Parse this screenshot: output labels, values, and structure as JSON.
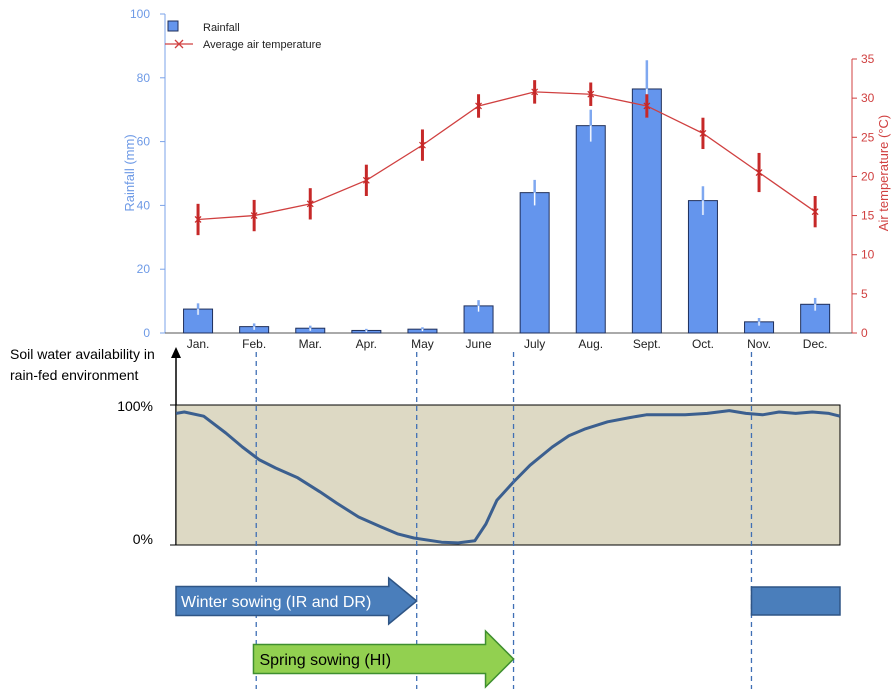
{
  "chart_data": [
    {
      "type": "bar",
      "categories": [
        "Jan.",
        "Feb.",
        "Mar.",
        "Apr.",
        "May",
        "June",
        "July",
        "Aug.",
        "Sept.",
        "Oct.",
        "Nov.",
        "Dec."
      ],
      "ylabel": "Rainfall (mm)",
      "y2label": "Air temperature (°C)",
      "ylim": [
        0,
        100
      ],
      "y_ticks": [
        0,
        20,
        40,
        60,
        80,
        100
      ],
      "y2lim": [
        0,
        35
      ],
      "y2_ticks": [
        0,
        5,
        10,
        15,
        20,
        25,
        30,
        35
      ],
      "legend_placement": "top-left",
      "grid": false,
      "series": [
        {
          "name": "Rainfall",
          "kind": "bar",
          "axis": "left",
          "color": "#6495ED",
          "values": [
            7.5,
            2,
            1.5,
            0.8,
            1.2,
            8.5,
            44,
            65,
            76.5,
            41.5,
            3.5,
            9
          ],
          "error": [
            1.8,
            1.0,
            0.8,
            0.5,
            0.6,
            1.8,
            4,
            5,
            9,
            4.5,
            1.2,
            2
          ]
        },
        {
          "name": "Average air temperature",
          "kind": "line",
          "axis": "right",
          "color": "#D04040",
          "values": [
            14.5,
            15,
            16.5,
            19.5,
            24,
            29,
            30.8,
            30.5,
            29,
            25.5,
            20.5,
            15.5
          ],
          "error": [
            2,
            2,
            2,
            2,
            2,
            1.5,
            1.5,
            1.5,
            1.5,
            2,
            2.5,
            2
          ]
        }
      ]
    },
    {
      "type": "area",
      "ylabel": "Soil water availability in rain-fed environment",
      "y_ticks": [
        "100%",
        "0%"
      ],
      "ylim": [
        0,
        100
      ],
      "x_range": [
        0,
        12
      ],
      "fill_color": "#DDD9C4",
      "line_color": "#3B5F8F",
      "x": [
        0,
        0.15,
        0.5,
        0.9,
        1.2,
        1.5,
        1.8,
        2.2,
        2.6,
        2.9,
        3.3,
        3.7,
        4.0,
        4.3,
        4.8,
        5.1,
        5.4,
        5.6,
        5.8,
        6.1,
        6.4,
        6.8,
        7.1,
        7.4,
        7.8,
        8.2,
        8.5,
        8.8,
        9.2,
        9.6,
        10.0,
        10.3,
        10.6,
        10.9,
        11.2,
        11.5,
        11.8,
        12.0
      ],
      "y": [
        94,
        95,
        92,
        80,
        70,
        61,
        55,
        48,
        38,
        30,
        20,
        13,
        8,
        5,
        2,
        1.5,
        3,
        15,
        32,
        45,
        57,
        70,
        78,
        83,
        88,
        91,
        93,
        93,
        93,
        94,
        96,
        94,
        93,
        95,
        94,
        95,
        94,
        92
      ]
    }
  ],
  "timeline": {
    "winter_label": "Winter sowing (IR and DR)",
    "spring_label": "Spring sowing (HI)",
    "winter_color": "#4A7EBB",
    "spring_color": "#92D050",
    "winter_range": [
      0,
      4.35
    ],
    "winter_continuation_range": [
      10.4,
      12
    ],
    "spring_range": [
      1.4,
      6.1
    ],
    "guide_months": [
      1.45,
      4.35,
      6.1,
      10.4
    ]
  }
}
